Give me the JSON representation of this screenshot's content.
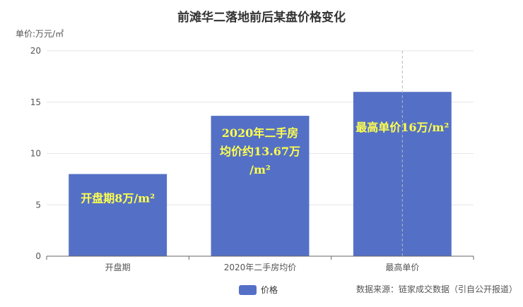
{
  "chart_data": {
    "type": "bar",
    "title": "前滩华二落地前后某盘价格变化",
    "ylabel": "单价:万元/㎡",
    "ylim": [
      0,
      20
    ],
    "yticks": [
      0,
      5,
      10,
      15,
      20
    ],
    "grid": true,
    "categories": [
      "开盘期",
      "2020年二手房均价",
      "最高单价"
    ],
    "series": [
      {
        "name": "价格",
        "values": [
          8,
          13.67,
          16
        ],
        "color": "#5470c6"
      }
    ],
    "annotations": [
      {
        "category": "开盘期",
        "lines": [
          "开盘期8万/m²"
        ]
      },
      {
        "category": "2020年二手房均价",
        "lines": [
          "2020年二手房",
          "均价约13.67万",
          "/m²"
        ]
      },
      {
        "category": "最高单价",
        "lines": [
          "最高单价16万/m²"
        ]
      }
    ],
    "annotation_color": "#ffff4d",
    "legend": "bottom-center",
    "source": "数据来源：链家成交数据（引自公开报道）"
  }
}
